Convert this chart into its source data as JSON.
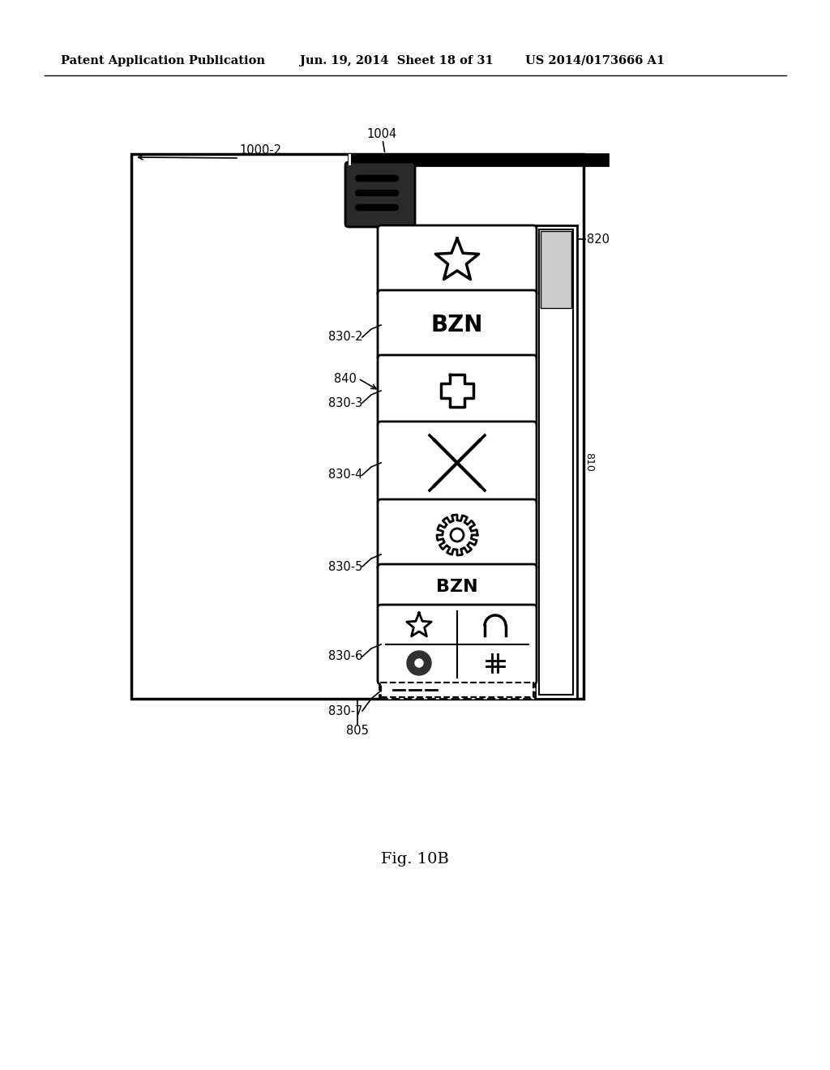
{
  "bg_color": "#ffffff",
  "header_text": "Patent Application Publication",
  "header_date": "Jun. 19, 2014  Sheet 18 of 31",
  "header_patent": "US 2014/0173666 A1",
  "fig_label": "Fig. 10B",
  "label_1000_2": "1000-2",
  "label_1004": "1004",
  "label_820": "820",
  "label_810": "810",
  "label_805": "805",
  "label_830_2": "830-2",
  "label_830_3": "830-3",
  "label_840": "840",
  "label_830_4": "830-4",
  "label_830_5": "830-5",
  "label_830_6": "830-6",
  "label_830_7": "830-7"
}
